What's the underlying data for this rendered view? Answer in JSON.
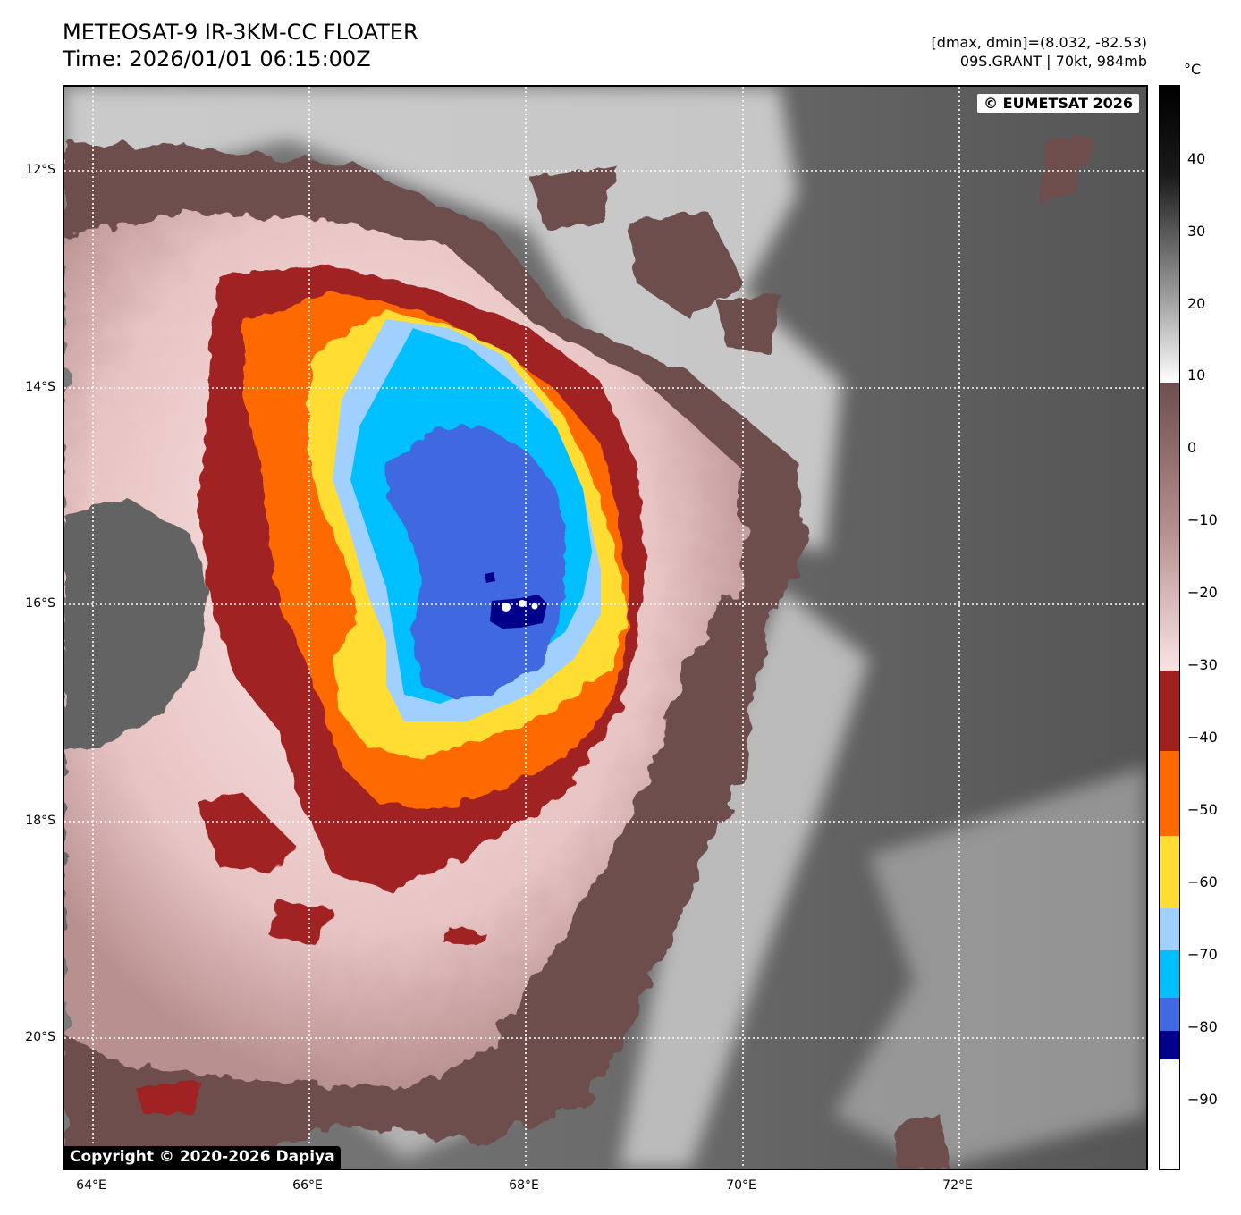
{
  "title": {
    "line1": "METEOSAT-9 IR-3KM-CC FLOATER",
    "line2": "Time: 2026/01/01 06:15:00Z"
  },
  "info": {
    "line1": "[dmax, dmin]=(8.032, -82.53)",
    "line2": "09S.GRANT | 70kt, 984mb"
  },
  "credits": {
    "eumetsat": "© EUMETSAT 2026",
    "dapiya": "Copyright © 2020-2026 Dapiya"
  },
  "axes": {
    "lat_labels": [
      "12°S",
      "14°S",
      "16°S",
      "18°S",
      "20°S"
    ],
    "lon_labels": [
      "64°E",
      "66°E",
      "68°E",
      "70°E",
      "72°E"
    ]
  },
  "colorbar": {
    "unit": "°C",
    "labels": [
      "40",
      "30",
      "20",
      "10",
      "0",
      "−10",
      "−20",
      "−30",
      "−40",
      "−50",
      "−60",
      "−70",
      "−80",
      "−90"
    ],
    "colors": {
      "dark_red": "#a02020",
      "orange": "#ff6a00",
      "yellow": "#ffdd33",
      "light_blue": "#a0d0ff",
      "cyan": "#00bfff",
      "royal_blue": "#4169e1",
      "navy": "#00008b",
      "pink": "#f7d7d7",
      "brown": "#6e4e4e",
      "gray": "#5e5e5e"
    }
  }
}
